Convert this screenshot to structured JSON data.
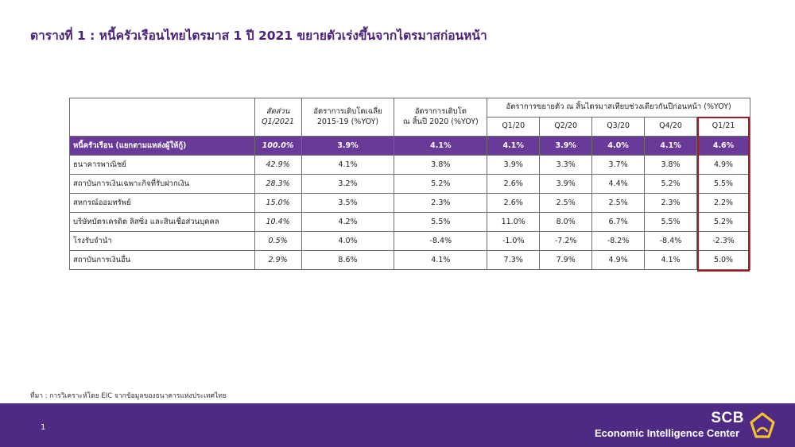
{
  "title": "ตารางที่ 1 : หนี้ครัวเรือนไทยไตรมาส 1 ปี 2021 ขยายตัวเร่งขึ้นจากไตรมาสก่อนหน้า",
  "table": {
    "headers": {
      "share_line1": "สัดส่วน",
      "share_line2": "Q1/2021",
      "avg_line1": "อัตราการเติบโตเฉลี่ย",
      "avg_line2": "2015-19 (%YOY)",
      "end2020_line1": "อัตราการเติบโต",
      "end2020_line2": "ณ สิ้นปี 2020 (%YOY)",
      "group": "อัตราการขยายตัว ณ สิ้นไตรมาสเทียบช่วงเดียวกันปีก่อนหน้า  (%YOY)",
      "quarters": [
        "Q1/20",
        "Q2/20",
        "Q3/20",
        "Q4/20",
        "Q1/21"
      ]
    },
    "rows": [
      {
        "label": "หนี้ครัวเรือน (แยกตามแหล่งผู้ให้กู้)",
        "share": "100.0%",
        "avg": "3.9%",
        "end2020": "4.1%",
        "q": [
          "4.1%",
          "3.9%",
          "4.0%",
          "4.1%",
          "4.6%"
        ]
      },
      {
        "label": "ธนาคารพาณิชย์",
        "share": "42.9%",
        "avg": "4.1%",
        "end2020": "3.8%",
        "q": [
          "3.9%",
          "3.3%",
          "3.7%",
          "3.8%",
          "4.9%"
        ]
      },
      {
        "label": "สถาบันการเงินเฉพาะกิจที่รับฝากเงิน",
        "share": "28.3%",
        "avg": "3.2%",
        "end2020": "5.2%",
        "q": [
          "2.6%",
          "3.9%",
          "4.4%",
          "5.2%",
          "5.5%"
        ]
      },
      {
        "label": "สหกรณ์ออมทรัพย์",
        "share": "15.0%",
        "avg": "3.5%",
        "end2020": "2.3%",
        "q": [
          "2.6%",
          "2.5%",
          "2.5%",
          "2.3%",
          "2.2%"
        ]
      },
      {
        "label": "บริษัทบัตรเครดิต ลิสซิ่ง และสินเชื่อส่วนบุคคล",
        "share": "10.4%",
        "avg": "4.2%",
        "end2020": "5.5%",
        "q": [
          "11.0%",
          "8.0%",
          "6.7%",
          "5.5%",
          "5.2%"
        ]
      },
      {
        "label": "โรงรับจำนำ",
        "share": "0.5%",
        "avg": "4.0%",
        "end2020": "-8.4%",
        "q": [
          "-1.0%",
          "-7.2%",
          "-8.2%",
          "-8.4%",
          "-2.3%"
        ]
      },
      {
        "label": "สถาบันการเงินอื่น",
        "share": "2.9%",
        "avg": "8.6%",
        "end2020": "4.1%",
        "q": [
          "7.3%",
          "7.9%",
          "4.9%",
          "4.1%",
          "5.0%"
        ]
      }
    ]
  },
  "source": "ที่มา : การวิเคราะห์โดย EIC จากข้อมูลของธนาคารแห่งประเทศไทย",
  "footer": {
    "page_number": "1",
    "brand": "SCB",
    "brand_sub": "Economic Intelligence Center",
    "logo_icon": "scb-logo-icon"
  },
  "colors": {
    "accent_purple": "#6a3a99",
    "footer_purple": "#4e2a84",
    "title_purple": "#4a2278",
    "highlight_red": "#a3172a",
    "logo_gold": "#f2c230"
  }
}
